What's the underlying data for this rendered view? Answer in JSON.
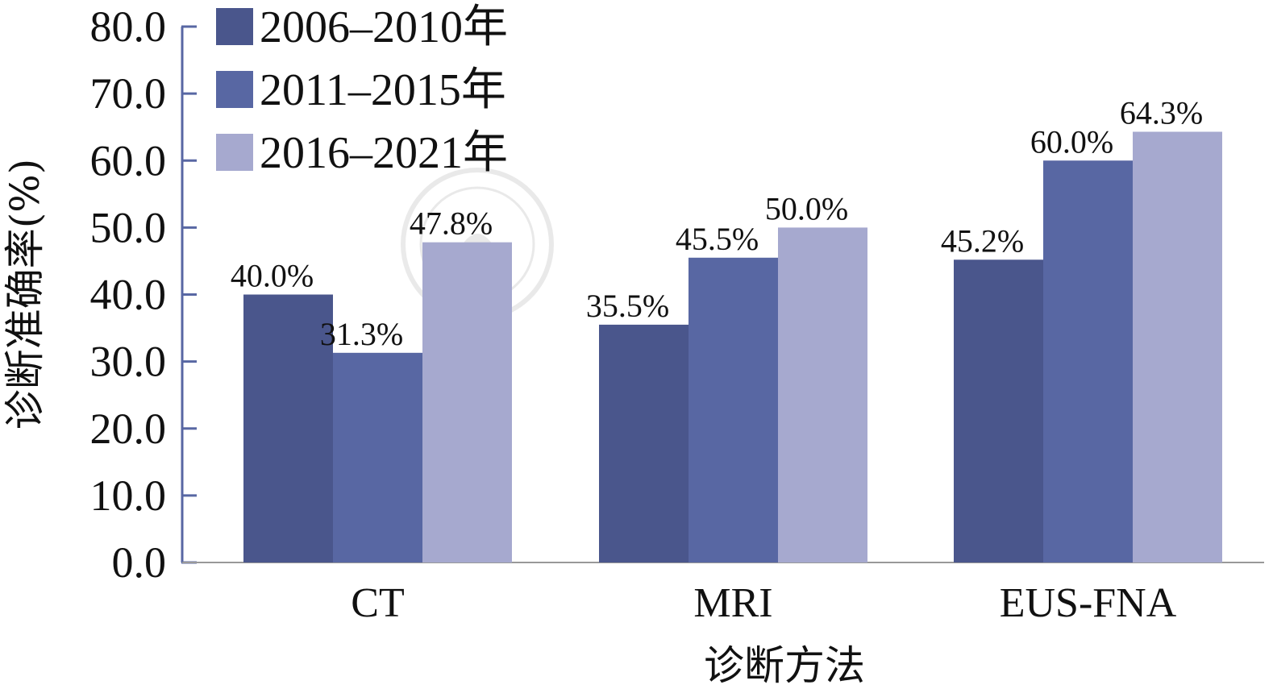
{
  "chart_data": {
    "type": "bar",
    "categories": [
      "CT",
      "MRI",
      "EUS-FNA"
    ],
    "series": [
      {
        "name": "2006–2010年",
        "values": [
          40.0,
          35.5,
          45.2
        ],
        "labels": [
          "40.0%",
          "35.5%",
          "45.2%"
        ],
        "color": "#4a568c"
      },
      {
        "name": "2011–2015年",
        "values": [
          31.3,
          45.5,
          60.0
        ],
        "labels": [
          "31.3%",
          "45.5%",
          "60.0%"
        ],
        "color": "#5867a3"
      },
      {
        "name": "2016–2021年",
        "values": [
          47.8,
          50.0,
          64.3
        ],
        "labels": [
          "47.8%",
          "50.0%",
          "64.3%"
        ],
        "color": "#a6a9cf"
      }
    ],
    "xlabel": "诊断方法",
    "ylabel": "诊断准确率(%)",
    "ylim": [
      0,
      80
    ],
    "yticks": [
      "0.0",
      "10.0",
      "20.0",
      "30.0",
      "40.0",
      "50.0",
      "60.0",
      "70.0",
      "80.0"
    ],
    "grid": false,
    "legend_position": "top-left",
    "axis_color": "#5867a3"
  }
}
